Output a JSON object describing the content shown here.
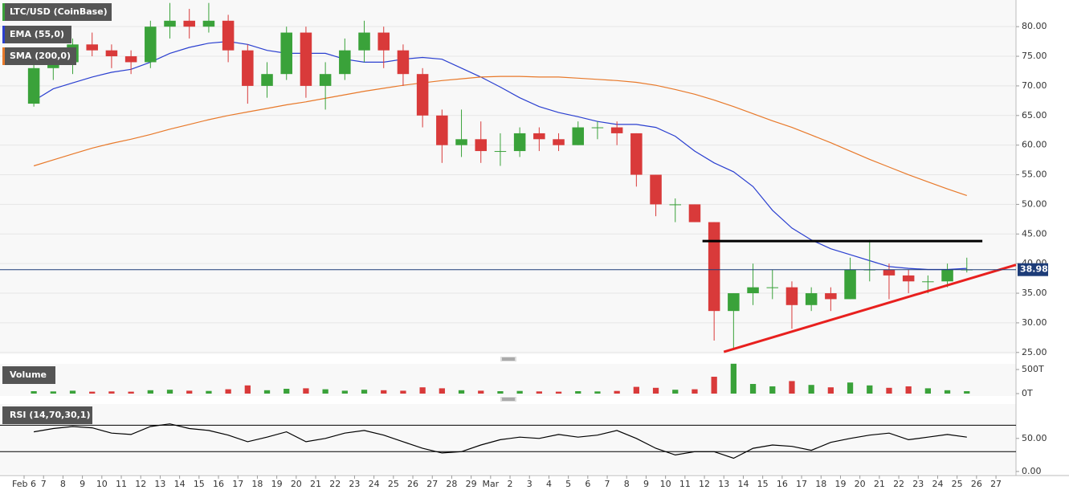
{
  "chart_data": [
    {
      "type": "candlestick",
      "title": "LTC/USD (CoinBase)",
      "x": [
        0,
        1,
        2,
        3,
        4,
        5,
        6,
        7,
        8,
        9,
        10,
        11,
        12,
        13,
        14,
        15,
        16,
        17,
        18,
        19,
        20,
        21,
        22,
        23,
        24,
        25,
        26,
        27,
        28,
        29,
        30,
        31,
        32,
        33,
        34,
        35,
        36,
        37,
        38,
        39,
        40,
        41,
        42,
        43,
        44,
        45,
        46,
        47,
        48
      ],
      "open": [
        67,
        73,
        74,
        77,
        76,
        75,
        74,
        80,
        81,
        80,
        81,
        76,
        70,
        72,
        79,
        70,
        72,
        76,
        79,
        76,
        72,
        65,
        60,
        61,
        59,
        59,
        62,
        61,
        60,
        63,
        63,
        62,
        55,
        50,
        50,
        47,
        32,
        35,
        36,
        36,
        33,
        35,
        34,
        39,
        39,
        38,
        37,
        37,
        39
      ],
      "high": [
        74,
        76,
        78,
        79,
        77,
        76,
        81,
        84,
        83,
        84,
        82,
        77,
        74,
        80,
        80,
        74,
        78,
        81,
        80,
        77,
        73,
        66,
        66,
        64,
        62,
        63,
        63,
        62,
        64,
        64,
        64,
        62,
        55,
        51,
        50,
        47,
        35,
        40,
        39,
        37,
        36,
        36,
        41,
        44,
        40,
        39,
        38,
        40,
        41
      ],
      "low": [
        66.5,
        71,
        72,
        75,
        73,
        72,
        73,
        78,
        78,
        79,
        74,
        67,
        68,
        71,
        68,
        66,
        71,
        74,
        73,
        70,
        63,
        57,
        58,
        57,
        56.5,
        58,
        59,
        59,
        60,
        61,
        60,
        53,
        48,
        47,
        47,
        27,
        25.5,
        33,
        34,
        29,
        32,
        32,
        34,
        37,
        34,
        35,
        35,
        36,
        38.5
      ],
      "close": [
        73,
        74,
        77,
        76,
        75,
        74,
        80,
        81,
        80,
        81,
        76,
        70,
        72,
        79,
        70,
        72,
        76,
        79,
        76,
        72,
        65,
        60,
        61,
        59,
        59,
        62,
        61,
        60,
        63,
        63,
        62,
        55,
        50,
        50,
        47,
        32,
        35,
        36,
        36,
        33,
        35,
        34,
        39,
        39,
        38,
        37,
        37,
        39,
        39
      ],
      "up_color": "#3aa23a",
      "down_color": "#d93a3a",
      "series": [
        {
          "name": "EMA (55,0)",
          "color": "#2a3fd0",
          "values": [
            67.5,
            69.5,
            70.5,
            71.5,
            72.3,
            72.8,
            74,
            75.5,
            76.5,
            77.2,
            77.5,
            77,
            76,
            75.5,
            75.5,
            75.5,
            74.5,
            74,
            74,
            74.5,
            74.8,
            74.5,
            73,
            71.5,
            69.8,
            68,
            66.5,
            65.5,
            64.8,
            64,
            63.5,
            63.5,
            63,
            61.5,
            59,
            57,
            55.5,
            53,
            49,
            46,
            44,
            42.5,
            41.5,
            40.5,
            39.5,
            39.2,
            39,
            39,
            39.2
          ]
        },
        {
          "name": "SMA (200,0)",
          "color": "#e8792a",
          "values": [
            56.5,
            57.5,
            58.5,
            59.5,
            60.3,
            61,
            61.8,
            62.7,
            63.5,
            64.3,
            65,
            65.6,
            66.2,
            66.8,
            67.3,
            67.9,
            68.5,
            69.1,
            69.6,
            70.1,
            70.5,
            70.9,
            71.2,
            71.5,
            71.6,
            71.6,
            71.5,
            71.5,
            71.3,
            71.1,
            70.9,
            70.6,
            70.1,
            69.4,
            68.6,
            67.6,
            66.5,
            65.3,
            64.1,
            63,
            61.7,
            60.4,
            59,
            57.6,
            56.3,
            55,
            53.8,
            52.6,
            51.5
          ]
        }
      ],
      "last_price": 38.98,
      "last_price_color": "#1d3c78",
      "annotations": [
        {
          "x": [
            34.9,
            49.3
          ],
          "y": [
            43.8,
            43.8
          ],
          "color": "#000000"
        },
        {
          "x": [
            36.0,
            51.03
          ],
          "y": [
            25.1,
            39.8
          ],
          "color": "#e8201e"
        }
      ],
      "xlim": [
        -1.24,
        51.03
      ],
      "ylim": [
        24.7,
        84.5
      ],
      "yticks": [
        {
          "value": 25,
          "label": "25.00"
        },
        {
          "value": 30,
          "label": "30.00"
        },
        {
          "value": 35,
          "label": "35.00"
        },
        {
          "value": 40,
          "label": "40.00"
        },
        {
          "value": 45,
          "label": "45.00"
        },
        {
          "value": 50,
          "label": "50.00"
        },
        {
          "value": 55,
          "label": "55.00"
        },
        {
          "value": 60,
          "label": "60.00"
        },
        {
          "value": 65,
          "label": "65.00"
        },
        {
          "value": 70,
          "label": "70.00"
        },
        {
          "value": 75,
          "label": "75.00"
        },
        {
          "value": 80,
          "label": "80.00"
        }
      ],
      "grid": true
    },
    {
      "type": "bar",
      "title": "Volume",
      "x": [
        0,
        1,
        2,
        3,
        4,
        5,
        6,
        7,
        8,
        9,
        10,
        11,
        12,
        13,
        14,
        15,
        16,
        17,
        18,
        19,
        20,
        21,
        22,
        23,
        24,
        25,
        26,
        27,
        28,
        29,
        30,
        31,
        32,
        33,
        34,
        35,
        36,
        37,
        38,
        39,
        40,
        41,
        42,
        43,
        44,
        45,
        46,
        47,
        48
      ],
      "values": [
        50,
        45,
        60,
        40,
        45,
        40,
        70,
        80,
        60,
        55,
        90,
        170,
        70,
        100,
        110,
        90,
        60,
        80,
        70,
        60,
        130,
        110,
        70,
        60,
        50,
        55,
        45,
        40,
        50,
        45,
        55,
        140,
        120,
        80,
        90,
        350,
        620,
        200,
        150,
        260,
        180,
        130,
        230,
        170,
        120,
        150,
        110,
        70,
        50
      ],
      "xlim": [
        -1.24,
        51.03
      ],
      "ylim": [
        -50,
        617
      ],
      "yticks": [
        {
          "value": 0,
          "label": "0T"
        },
        {
          "value": 500,
          "label": "500T"
        }
      ]
    },
    {
      "type": "line",
      "title": "RSI (14,70,30,1)",
      "x": [
        0,
        1,
        2,
        3,
        4,
        5,
        6,
        7,
        8,
        9,
        10,
        11,
        12,
        13,
        14,
        15,
        16,
        17,
        18,
        19,
        20,
        21,
        22,
        23,
        24,
        25,
        26,
        27,
        28,
        29,
        30,
        31,
        32,
        33,
        34,
        35,
        36,
        37,
        38,
        39,
        40,
        41,
        42,
        43,
        44,
        45,
        46,
        47,
        48
      ],
      "series": [
        {
          "name": "RSI (14,70,30,1)",
          "color": "#000000",
          "values": [
            60,
            65,
            68,
            66,
            58,
            56,
            68,
            72,
            65,
            62,
            55,
            45,
            52,
            60,
            45,
            50,
            58,
            62,
            55,
            45,
            35,
            28,
            30,
            40,
            48,
            52,
            50,
            56,
            52,
            55,
            62,
            50,
            35,
            25,
            30,
            30,
            20,
            35,
            40,
            38,
            32,
            44,
            50,
            55,
            58,
            48,
            52,
            56,
            52
          ]
        }
      ],
      "levels": [
        70,
        30
      ],
      "xlim": [
        -1.24,
        51.03
      ],
      "ylim": [
        -3.7,
        102
      ],
      "yticks": [
        {
          "value": 0,
          "label": "0.00"
        },
        {
          "value": 50,
          "label": "50.00"
        }
      ],
      "xticks": [
        {
          "value": 0,
          "label": "Feb 6"
        },
        {
          "value": 1,
          "label": "7"
        },
        {
          "value": 2,
          "label": "8"
        },
        {
          "value": 3,
          "label": "9"
        },
        {
          "value": 4,
          "label": "10"
        },
        {
          "value": 5,
          "label": "11"
        },
        {
          "value": 6,
          "label": "12"
        },
        {
          "value": 7,
          "label": "13"
        },
        {
          "value": 8,
          "label": "14"
        },
        {
          "value": 9,
          "label": "15"
        },
        {
          "value": 10,
          "label": "16"
        },
        {
          "value": 11,
          "label": "17"
        },
        {
          "value": 12,
          "label": "18"
        },
        {
          "value": 13,
          "label": "19"
        },
        {
          "value": 14,
          "label": "20"
        },
        {
          "value": 15,
          "label": "21"
        },
        {
          "value": 16,
          "label": "22"
        },
        {
          "value": 17,
          "label": "23"
        },
        {
          "value": 18,
          "label": "24"
        },
        {
          "value": 19,
          "label": "25"
        },
        {
          "value": 20,
          "label": "26"
        },
        {
          "value": 21,
          "label": "27"
        },
        {
          "value": 22,
          "label": "28"
        },
        {
          "value": 23,
          "label": "29"
        },
        {
          "value": 24,
          "label": "Mar"
        },
        {
          "value": 25,
          "label": "2"
        },
        {
          "value": 26,
          "label": "3"
        },
        {
          "value": 27,
          "label": "4"
        },
        {
          "value": 28,
          "label": "5"
        },
        {
          "value": 29,
          "label": "6"
        },
        {
          "value": 30,
          "label": "7"
        },
        {
          "value": 31,
          "label": "8"
        },
        {
          "value": 32,
          "label": "9"
        },
        {
          "value": 33,
          "label": "10"
        },
        {
          "value": 34,
          "label": "11"
        },
        {
          "value": 35,
          "label": "12"
        },
        {
          "value": 36,
          "label": "13"
        },
        {
          "value": 37,
          "label": "14"
        },
        {
          "value": 38,
          "label": "15"
        },
        {
          "value": 39,
          "label": "16"
        },
        {
          "value": 40,
          "label": "17"
        },
        {
          "value": 41,
          "label": "18"
        },
        {
          "value": 42,
          "label": "19"
        },
        {
          "value": 43,
          "label": "20"
        },
        {
          "value": 44,
          "label": "21"
        },
        {
          "value": 45,
          "label": "22"
        },
        {
          "value": 46,
          "label": "23"
        },
        {
          "value": 47,
          "label": "24"
        },
        {
          "value": 48,
          "label": "25"
        },
        {
          "value": 49,
          "label": "26"
        },
        {
          "value": 50,
          "label": "27"
        }
      ]
    }
  ]
}
